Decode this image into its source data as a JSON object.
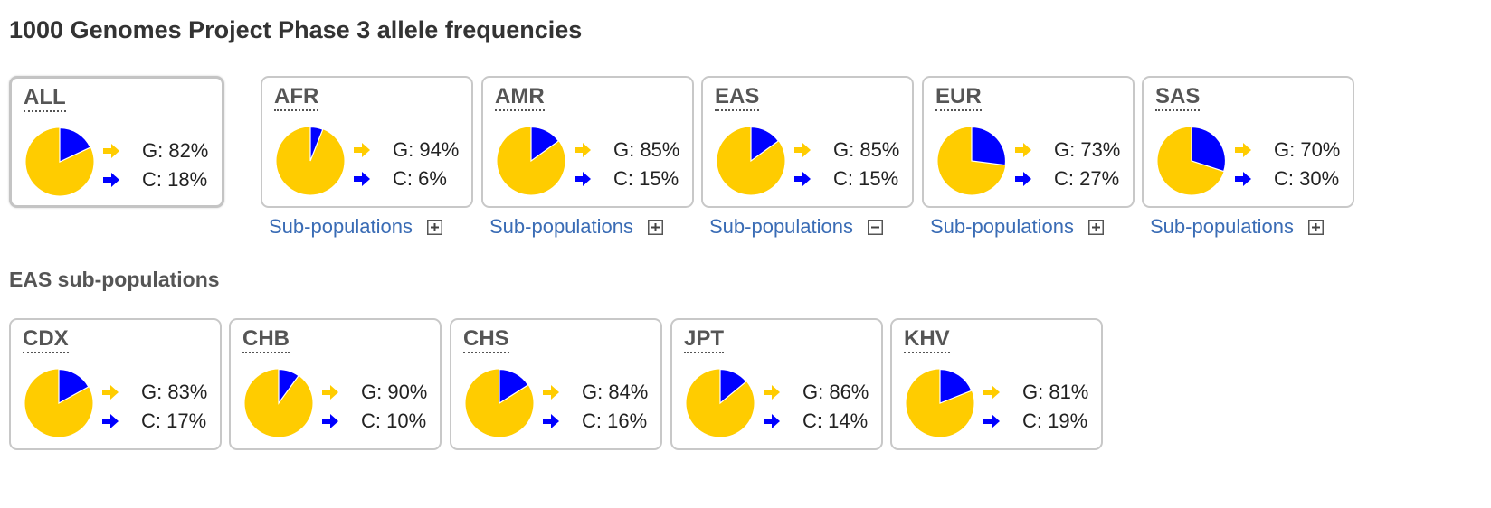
{
  "page": {
    "title": "1000 Genomes Project Phase 3 allele frequencies",
    "subpop_section_title": "EAS sub-populations",
    "subpop_link_label": "Sub-populations"
  },
  "colors": {
    "allele_1": "#FFCC00",
    "allele_2": "#0000FF",
    "link": "#3A6CB5"
  },
  "chart_data": [
    {
      "type": "pie",
      "group": "super-populations",
      "items": [
        {
          "name": "ALL",
          "slices": [
            {
              "allele": "G",
              "value": 82,
              "label": "G: 82%"
            },
            {
              "allele": "C",
              "value": 18,
              "label": "C: 18%"
            }
          ],
          "selected": true,
          "subpops": null
        },
        {
          "name": "AFR",
          "slices": [
            {
              "allele": "G",
              "value": 94,
              "label": "G: 94%"
            },
            {
              "allele": "C",
              "value": 6,
              "label": "C: 6%"
            }
          ],
          "selected": false,
          "subpops": "collapsed"
        },
        {
          "name": "AMR",
          "slices": [
            {
              "allele": "G",
              "value": 85,
              "label": "G: 85%"
            },
            {
              "allele": "C",
              "value": 15,
              "label": "C: 15%"
            }
          ],
          "selected": false,
          "subpops": "collapsed"
        },
        {
          "name": "EAS",
          "slices": [
            {
              "allele": "G",
              "value": 85,
              "label": "G: 85%"
            },
            {
              "allele": "C",
              "value": 15,
              "label": "C: 15%"
            }
          ],
          "selected": false,
          "subpops": "expanded"
        },
        {
          "name": "EUR",
          "slices": [
            {
              "allele": "G",
              "value": 73,
              "label": "G: 73%"
            },
            {
              "allele": "C",
              "value": 27,
              "label": "C: 27%"
            }
          ],
          "selected": false,
          "subpops": "collapsed"
        },
        {
          "name": "SAS",
          "slices": [
            {
              "allele": "G",
              "value": 70,
              "label": "G: 70%"
            },
            {
              "allele": "C",
              "value": 30,
              "label": "C: 30%"
            }
          ],
          "selected": false,
          "subpops": "collapsed"
        }
      ]
    },
    {
      "type": "pie",
      "group": "EAS sub-populations",
      "items": [
        {
          "name": "CDX",
          "slices": [
            {
              "allele": "G",
              "value": 83,
              "label": "G: 83%"
            },
            {
              "allele": "C",
              "value": 17,
              "label": "C: 17%"
            }
          ]
        },
        {
          "name": "CHB",
          "slices": [
            {
              "allele": "G",
              "value": 90,
              "label": "G: 90%"
            },
            {
              "allele": "C",
              "value": 10,
              "label": "C: 10%"
            }
          ]
        },
        {
          "name": "CHS",
          "slices": [
            {
              "allele": "G",
              "value": 84,
              "label": "G: 84%"
            },
            {
              "allele": "C",
              "value": 16,
              "label": "C: 16%"
            }
          ]
        },
        {
          "name": "JPT",
          "slices": [
            {
              "allele": "G",
              "value": 86,
              "label": "G: 86%"
            },
            {
              "allele": "C",
              "value": 14,
              "label": "C: 14%"
            }
          ]
        },
        {
          "name": "KHV",
          "slices": [
            {
              "allele": "G",
              "value": 81,
              "label": "G: 81%"
            },
            {
              "allele": "C",
              "value": 19,
              "label": "C: 19%"
            }
          ]
        }
      ]
    }
  ]
}
